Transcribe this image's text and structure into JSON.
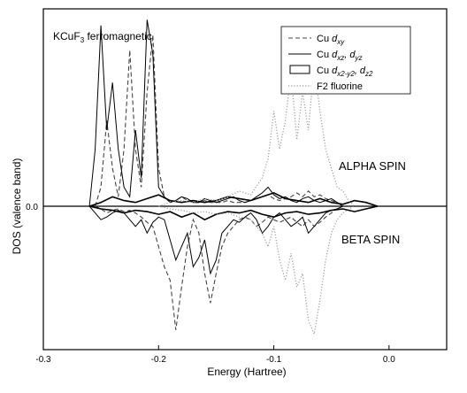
{
  "chart_data": {
    "type": "line",
    "title_main": "KCuF",
    "title_sub": "3",
    "title_rest": " ferromagnetic",
    "xlabel": "Energy (Hartree)",
    "ylabel": "DOS (valence band)",
    "xlim": [
      -0.3,
      0.05
    ],
    "x_ticks": [
      {
        "value": -0.3,
        "label": "-0.3"
      },
      {
        "value": -0.2,
        "label": "-0.2"
      },
      {
        "value": -0.1,
        "label": "-0.1"
      },
      {
        "value": 0.0,
        "label": "0.0"
      }
    ],
    "y_ticks": [
      {
        "value": 0,
        "label": "0.0"
      }
    ],
    "ylim": [
      -1.0,
      1.0
    ],
    "annotations": {
      "alpha": "ALPHA SPIN",
      "beta": "BETA SPIN"
    },
    "legend_position": "top-right",
    "legend": [
      {
        "id": "dxy",
        "prefix": "Cu ",
        "main": "d",
        "sub": "xy",
        "main2": "",
        "sub2": "",
        "style": "dashed",
        "color": "#444444"
      },
      {
        "id": "dxz",
        "prefix": "Cu  ",
        "main": "d",
        "sub": "xz",
        "main2": ", d",
        "sub2": "yz",
        "style": "solid",
        "color": "#000000"
      },
      {
        "id": "dx2",
        "prefix": "Cu ",
        "main": "d",
        "sub": "x2-y2",
        "main2": ", d",
        "sub2": "z2",
        "style": "double",
        "color": "#000000"
      },
      {
        "id": "f2",
        "prefix": "",
        "main": "F2 fluorine",
        "sub": "",
        "main2": "",
        "sub2": "",
        "style": "dotted",
        "color": "#9a9a9a"
      }
    ],
    "series": [
      {
        "id": "dxy",
        "style": "dashed",
        "color": "#444444",
        "x": [
          -0.255,
          -0.25,
          -0.245,
          -0.24,
          -0.235,
          -0.23,
          -0.225,
          -0.22,
          -0.215,
          -0.21,
          -0.205,
          -0.2,
          -0.195,
          -0.19,
          -0.185,
          -0.18,
          -0.175,
          -0.17,
          -0.165,
          -0.16,
          -0.155,
          -0.15,
          -0.145,
          -0.14,
          -0.135,
          -0.13,
          -0.125,
          -0.12,
          -0.115,
          -0.11,
          -0.105,
          -0.1,
          -0.095,
          -0.09,
          -0.085,
          -0.08,
          -0.075,
          -0.07,
          -0.065,
          -0.06,
          -0.055,
          -0.05,
          -0.045,
          -0.04
        ],
        "alpha": [
          0.0,
          0.1,
          0.45,
          0.2,
          0.05,
          0.3,
          0.82,
          0.3,
          0.1,
          0.6,
          0.9,
          0.2,
          0.05,
          0.02,
          0.03,
          0.05,
          0.03,
          0.02,
          0.02,
          0.03,
          0.02,
          0.02,
          0.02,
          0.03,
          0.02,
          0.02,
          0.02,
          0.03,
          0.04,
          0.05,
          0.06,
          0.04,
          0.03,
          0.04,
          0.05,
          0.07,
          0.05,
          0.08,
          0.05,
          0.06,
          0.04,
          0.03,
          0.02,
          0.0
        ],
        "beta": [
          0.0,
          -0.02,
          -0.05,
          -0.03,
          -0.02,
          -0.04,
          -0.03,
          -0.05,
          -0.08,
          -0.12,
          -0.15,
          -0.3,
          -0.45,
          -0.55,
          -0.92,
          -0.6,
          -0.3,
          -0.1,
          -0.2,
          -0.5,
          -0.72,
          -0.5,
          -0.3,
          -0.2,
          -0.15,
          -0.1,
          -0.08,
          -0.1,
          -0.15,
          -0.12,
          -0.08,
          -0.1,
          -0.12,
          -0.1,
          -0.08,
          -0.12,
          -0.15,
          -0.1,
          -0.15,
          -0.12,
          -0.08,
          -0.05,
          -0.02,
          0.0
        ]
      },
      {
        "id": "dxz",
        "style": "solid",
        "color": "#000000",
        "x": [
          -0.26,
          -0.255,
          -0.25,
          -0.245,
          -0.24,
          -0.235,
          -0.23,
          -0.225,
          -0.22,
          -0.215,
          -0.21,
          -0.205,
          -0.2,
          -0.195,
          -0.19,
          -0.185,
          -0.18,
          -0.175,
          -0.17,
          -0.165,
          -0.16,
          -0.155,
          -0.15,
          -0.145,
          -0.14,
          -0.135,
          -0.13,
          -0.125,
          -0.12,
          -0.115,
          -0.11,
          -0.105,
          -0.1,
          -0.095,
          -0.09,
          -0.085,
          -0.08,
          -0.075,
          -0.07,
          -0.065,
          -0.06,
          -0.055,
          -0.05,
          -0.045,
          -0.04
        ],
        "alpha": [
          0.0,
          0.3,
          0.95,
          0.4,
          0.65,
          0.3,
          0.1,
          0.05,
          0.4,
          0.15,
          0.98,
          0.8,
          0.1,
          0.05,
          0.02,
          0.03,
          0.05,
          0.04,
          0.02,
          0.02,
          0.04,
          0.03,
          0.02,
          0.03,
          0.04,
          0.05,
          0.03,
          0.02,
          0.03,
          0.05,
          0.07,
          0.1,
          0.06,
          0.04,
          0.05,
          0.03,
          0.02,
          0.04,
          0.05,
          0.03,
          0.02,
          0.03,
          0.04,
          0.02,
          0.0
        ],
        "beta": [
          0.0,
          -0.05,
          -0.1,
          -0.08,
          -0.05,
          -0.03,
          -0.05,
          -0.1,
          -0.15,
          -0.1,
          -0.2,
          -0.12,
          -0.08,
          -0.1,
          -0.25,
          -0.4,
          -0.3,
          -0.2,
          -0.45,
          -0.38,
          -0.25,
          -0.5,
          -0.4,
          -0.2,
          -0.15,
          -0.1,
          -0.12,
          -0.08,
          -0.05,
          -0.1,
          -0.2,
          -0.15,
          -0.08,
          -0.05,
          -0.1,
          -0.15,
          -0.12,
          -0.08,
          -0.2,
          -0.15,
          -0.1,
          -0.05,
          -0.03,
          -0.02,
          0.0
        ]
      },
      {
        "id": "dx2",
        "style": "double",
        "color": "#000000",
        "x": [
          -0.26,
          -0.25,
          -0.24,
          -0.23,
          -0.22,
          -0.21,
          -0.2,
          -0.19,
          -0.18,
          -0.17,
          -0.16,
          -0.15,
          -0.14,
          -0.13,
          -0.12,
          -0.11,
          -0.1,
          -0.09,
          -0.08,
          -0.07,
          -0.06,
          -0.05,
          -0.04,
          -0.03,
          -0.02,
          -0.01
        ],
        "alpha": [
          0.0,
          0.02,
          0.05,
          0.03,
          0.02,
          0.04,
          0.06,
          0.03,
          0.02,
          0.03,
          0.02,
          0.03,
          0.05,
          0.04,
          0.03,
          0.05,
          0.07,
          0.04,
          0.03,
          0.02,
          0.04,
          0.02,
          0.01,
          0.03,
          0.02,
          0.0
        ],
        "beta": [
          0.0,
          -0.02,
          -0.03,
          -0.05,
          -0.03,
          -0.04,
          -0.06,
          -0.04,
          -0.08,
          -0.05,
          -0.1,
          -0.06,
          -0.04,
          -0.05,
          -0.03,
          -0.06,
          -0.08,
          -0.05,
          -0.04,
          -0.06,
          -0.05,
          -0.03,
          -0.02,
          -0.04,
          -0.02,
          0.0
        ]
      },
      {
        "id": "f2",
        "style": "dotted",
        "color": "#9a9a9a",
        "x": [
          -0.2,
          -0.19,
          -0.18,
          -0.17,
          -0.16,
          -0.15,
          -0.14,
          -0.13,
          -0.12,
          -0.11,
          -0.105,
          -0.1,
          -0.095,
          -0.09,
          -0.085,
          -0.08,
          -0.075,
          -0.07,
          -0.065,
          -0.06,
          -0.055,
          -0.05,
          -0.045,
          -0.04,
          -0.035,
          -0.03
        ],
        "alpha": [
          0.0,
          0.02,
          0.03,
          0.02,
          0.04,
          0.03,
          0.05,
          0.08,
          0.06,
          0.15,
          0.25,
          0.5,
          0.3,
          0.45,
          0.7,
          0.35,
          0.6,
          0.4,
          0.75,
          0.5,
          0.3,
          0.2,
          0.1,
          0.08,
          0.03,
          0.0
        ],
        "beta": [
          0.0,
          -0.02,
          -0.03,
          -0.05,
          -0.04,
          -0.06,
          -0.05,
          -0.08,
          -0.1,
          -0.2,
          -0.3,
          -0.15,
          -0.4,
          -0.55,
          -0.35,
          -0.6,
          -0.5,
          -0.85,
          -0.95,
          -0.7,
          -0.4,
          -0.2,
          -0.1,
          -0.05,
          -0.02,
          0.0
        ]
      }
    ]
  }
}
